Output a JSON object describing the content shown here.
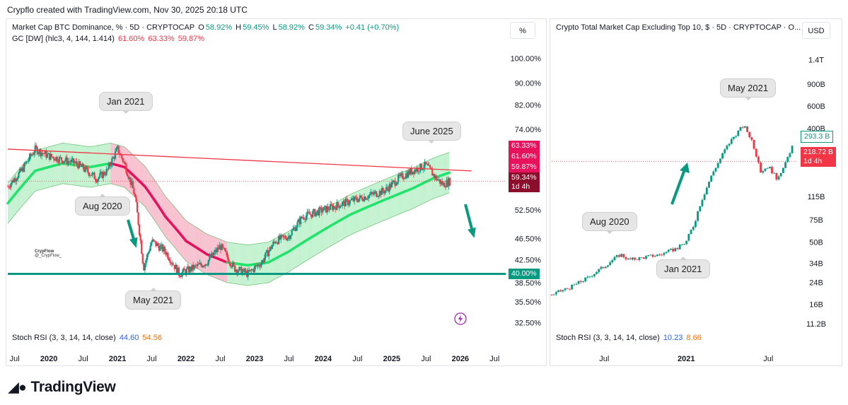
{
  "header": {
    "text": "Crypflo created with TradingView.com, Nov 30, 2025 20:18 UTC"
  },
  "left": {
    "legend1": {
      "title": "Market Cap BTC Dominance, % · 5D · CRYPTOCAP",
      "o_label": "O",
      "o": "58.92%",
      "h_label": "H",
      "h": "59.45%",
      "l_label": "L",
      "l": "58.92%",
      "c_label": "C",
      "c": "59.34%",
      "change": "+0.41 (+0.70%)"
    },
    "legend2": {
      "title": "GC [DW] (hlc3, 4, 144, 1.414)",
      "v1": "61.60%",
      "v2": "63.33%",
      "v3": "59.87%"
    },
    "unit": "%",
    "stoch": {
      "title": "Stoch RSI (3, 3, 14, 14, close)",
      "k": "44.60",
      "d": "54.56"
    },
    "callouts": {
      "jan2021": "Jan 2021",
      "aug2020": "Aug 2020",
      "may2021": "May 2021",
      "june2025": "June 2025"
    },
    "watermark": {
      "name": "CrypFlow",
      "handle": "@_CrypFlow_"
    },
    "price_tags": {
      "t1": "63.33%",
      "t2": "61.60%",
      "t3": "59.87%",
      "t4": "59.34%",
      "t4b": "1d 4h",
      "t5": "40.00%"
    },
    "support_level": 40.0,
    "colors": {
      "up": "#089981",
      "down": "#f23645",
      "band_green": "#b8f0c8",
      "band_pink": "#f7b6c8",
      "line_pink": "#e8115b",
      "line_green": "#22e36b",
      "support": "#089981"
    }
  },
  "right": {
    "legend": {
      "title": "Crypto Total Market Cap Excluding Top 10, $ · 5D · CRYPTOCAP · O..."
    },
    "unit": "USD",
    "stoch": {
      "title": "Stoch RSI (3, 3, 14, 14, close)",
      "k": "10.23",
      "d": "8.66"
    },
    "callouts": {
      "may2021": "May 2021",
      "aug2020": "Aug 2020",
      "jan2021": "Jan 2021"
    },
    "price_tags": {
      "t1": "293.3 B",
      "t2": "218.72 B",
      "t2b": "1d 4h"
    }
  },
  "chart_data": [
    {
      "type": "line",
      "title": "Market Cap BTC Dominance, % · 5D · CRYPTOCAP",
      "yscale": "log",
      "y_ticks": [
        "100.00%",
        "90.00%",
        "82.00%",
        "74.00%",
        "52.50%",
        "46.50%",
        "42.50%",
        "38.50%",
        "35.50%",
        "32.50%"
      ],
      "y_tick_values": [
        100,
        90,
        82,
        74,
        52.5,
        46.5,
        42.5,
        38.5,
        35.5,
        32.5
      ],
      "x_ticks": [
        "Jul",
        "2020",
        "Jul",
        "2021",
        "Jul",
        "2022",
        "Jul",
        "2023",
        "Jul",
        "2024",
        "Jul",
        "2025",
        "Jul",
        "2026",
        "Jul"
      ],
      "x_tick_values": [
        2019.5,
        2020,
        2020.5,
        2021,
        2021.5,
        2022,
        2022.5,
        2023,
        2023.5,
        2024,
        2024.5,
        2025,
        2025.5,
        2026,
        2026.5
      ],
      "x_range": [
        2019.4,
        2026.6
      ],
      "y_range": [
        31.5,
        108
      ],
      "series": [
        {
          "x": [
            2019.4,
            2019.6,
            2019.8,
            2020.0,
            2020.2,
            2020.4,
            2020.55,
            2020.7,
            2020.85,
            2021.0,
            2021.1,
            2021.25,
            2021.38,
            2021.5,
            2021.7,
            2021.9,
            2022.1,
            2022.3,
            2022.5,
            2022.7,
            2022.9,
            2023.1,
            2023.3,
            2023.5,
            2023.7,
            2023.9,
            2024.1,
            2024.3,
            2024.5,
            2024.7,
            2024.9,
            2025.1,
            2025.3,
            2025.5,
            2025.65,
            2025.75,
            2025.85
          ],
          "y": [
            58,
            62,
            68,
            66,
            65,
            64,
            62,
            60,
            62,
            68,
            64,
            56,
            41,
            46,
            44,
            40,
            41,
            42,
            45,
            41,
            40,
            42,
            46,
            47,
            51,
            52,
            53,
            54,
            55,
            56,
            57,
            60,
            62,
            63.5,
            60,
            58.5,
            59.34
          ]
        },
        {
          "x": [
            2019.4,
            2019.8,
            2020.2,
            2020.6,
            2020.9,
            2021.1,
            2021.4,
            2021.7,
            2022.0,
            2022.3,
            2022.6,
            2022.9,
            2023.2,
            2023.5,
            2023.8,
            2024.1,
            2024.4,
            2024.7,
            2025.0,
            2025.3,
            2025.6,
            2025.85
          ],
          "y": [
            54,
            62,
            64,
            63,
            64,
            63,
            58,
            51,
            46,
            43.5,
            42,
            41.5,
            42,
            44,
            46.5,
            49,
            51.5,
            53.5,
            55.5,
            57.5,
            60,
            61.6
          ]
        },
        {
          "x": [
            2019.4,
            2025.75
          ],
          "y": [
            68,
            61.6
          ]
        },
        {
          "x": [
            2019.4,
            2026.3
          ],
          "y": [
            40,
            40
          ]
        }
      ]
    },
    {
      "type": "line",
      "title": "Crypto Total Market Cap Excluding Top 10, $ · 5D · CRYPTOCAP",
      "yscale": "log",
      "y_ticks": [
        "1.4T",
        "900B",
        "600B",
        "400B",
        "115B",
        "75B",
        "50B",
        "34B",
        "24B",
        "16B",
        "11.2B"
      ],
      "y_tick_values": [
        1400,
        900,
        600,
        400,
        115,
        75,
        50,
        34,
        24,
        16,
        11.2
      ],
      "x_ticks": [
        "Jul",
        "2021",
        "Jul"
      ],
      "x_tick_values": [
        2020.5,
        2021,
        2021.5
      ],
      "x_range": [
        2020.18,
        2021.68
      ],
      "y_range": [
        10,
        2000
      ],
      "series": [
        {
          "x": [
            2020.18,
            2020.3,
            2020.4,
            2020.5,
            2020.6,
            2020.65,
            2020.75,
            2020.85,
            2020.95,
            2021.0,
            2021.05,
            2021.12,
            2021.2,
            2021.28,
            2021.35,
            2021.4,
            2021.45,
            2021.5,
            2021.55,
            2021.6,
            2021.65
          ],
          "y": [
            19,
            22,
            26,
            32,
            40,
            36,
            38,
            40,
            45,
            50,
            70,
            130,
            220,
            330,
            420,
            320,
            180,
            200,
            160,
            200,
            293.3
          ]
        }
      ]
    }
  ]
}
